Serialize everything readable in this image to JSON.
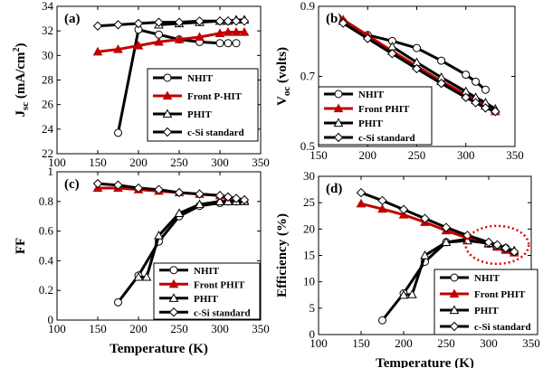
{
  "colors": {
    "black": "#000000",
    "red": "#c00000",
    "ellipse": "#e00000"
  },
  "shared": {
    "xlabel": "Temperature (K)"
  },
  "chart_data": [
    {
      "id": "a",
      "type": "line",
      "panel_label": "(a)",
      "ylabel_main": "J",
      "ylabel_sub": "sc",
      "ylabel_rest": " (mA/cm",
      "ylabel_sup": "2",
      "ylabel_end": ")",
      "xlim": [
        100,
        350
      ],
      "ylim": [
        22,
        34
      ],
      "xticks": [
        100,
        150,
        200,
        250,
        300,
        350
      ],
      "yticks": [
        22,
        24,
        26,
        28,
        30,
        32,
        34
      ],
      "xlabel": "",
      "legend": [
        "NHIT",
        "Front P-HIT",
        "PHIT",
        "c-Si standard"
      ],
      "series": [
        {
          "name": "NHIT",
          "marker": "circle",
          "color": "#000000",
          "x": [
            175,
            200,
            225,
            250,
            275,
            300,
            310,
            320
          ],
          "y": [
            23.7,
            32.1,
            31.7,
            31.3,
            31.1,
            31.0,
            31.0,
            31.0
          ]
        },
        {
          "name": "Front P-HIT",
          "marker": "triangle",
          "color": "#c00000",
          "x": [
            150,
            175,
            200,
            225,
            250,
            275,
            300,
            310,
            320,
            330
          ],
          "y": [
            30.3,
            30.5,
            30.8,
            31.1,
            31.3,
            31.5,
            31.8,
            31.9,
            31.9,
            31.9
          ]
        },
        {
          "name": "PHIT",
          "marker": "triangle",
          "color": "#000000",
          "x": [
            225,
            250,
            275,
            300,
            310,
            320,
            330
          ],
          "y": [
            32.5,
            32.6,
            32.7,
            32.8,
            32.8,
            32.9,
            32.9
          ]
        },
        {
          "name": "c-Si standard",
          "marker": "diamond",
          "color": "#000000",
          "x": [
            150,
            175,
            200,
            225,
            250,
            275,
            300,
            310,
            320,
            330
          ],
          "y": [
            32.4,
            32.5,
            32.6,
            32.7,
            32.7,
            32.8,
            32.8,
            32.8,
            32.8,
            32.8
          ]
        }
      ]
    },
    {
      "id": "b",
      "type": "line",
      "panel_label": "(b)",
      "ylabel_main": "V",
      "ylabel_sub": "oc",
      "ylabel_rest": " (volts)",
      "xlim": [
        150,
        350
      ],
      "ylim": [
        0.5,
        0.9
      ],
      "xticks": [
        150,
        200,
        250,
        300,
        350
      ],
      "yticks": [
        0.5,
        0.7,
        0.9
      ],
      "xlabel": "",
      "legend": [
        "NHIT",
        "Front PHIT",
        "PHIT",
        "c-Si standard"
      ],
      "series": [
        {
          "name": "NHIT",
          "marker": "circle",
          "color": "#000000",
          "x": [
            175,
            200,
            225,
            250,
            275,
            300,
            310,
            320
          ],
          "y": [
            0.856,
            0.818,
            0.801,
            0.781,
            0.745,
            0.705,
            0.685,
            0.662
          ]
        },
        {
          "name": "Front PHIT",
          "marker": "triangle",
          "color": "#c00000",
          "x": [
            175,
            200,
            225,
            250,
            275,
            300,
            310,
            320,
            330
          ],
          "y": [
            0.862,
            0.817,
            0.772,
            0.729,
            0.686,
            0.648,
            0.632,
            0.616,
            0.6
          ]
        },
        {
          "name": "PHIT",
          "marker": "triangle",
          "color": "#000000",
          "x": [
            225,
            250,
            275,
            300,
            310,
            320,
            330
          ],
          "y": [
            0.785,
            0.74,
            0.697,
            0.657,
            0.64,
            0.625,
            0.607
          ]
        },
        {
          "name": "c-Si standard",
          "marker": "diamond",
          "color": "#000000",
          "x": [
            175,
            200,
            225,
            250,
            275,
            300,
            310,
            320,
            330
          ],
          "y": [
            0.852,
            0.808,
            0.765,
            0.722,
            0.68,
            0.64,
            0.625,
            0.61,
            0.6
          ]
        }
      ]
    },
    {
      "id": "c",
      "type": "line",
      "panel_label": "(c)",
      "ylabel_main": "FF",
      "xlim": [
        100,
        350
      ],
      "ylim": [
        0,
        1
      ],
      "xticks": [
        100,
        150,
        200,
        250,
        300,
        350
      ],
      "yticks": [
        0,
        0.2,
        0.4,
        0.6,
        0.8,
        1
      ],
      "xlabel": "Temperature (K)",
      "legend": [
        "NHIT",
        "Front PHIT",
        "PHIT",
        "c-Si standard"
      ],
      "series": [
        {
          "name": "NHIT",
          "marker": "circle",
          "color": "#000000",
          "x": [
            175,
            200,
            225,
            250,
            275,
            300,
            310,
            320
          ],
          "y": [
            0.12,
            0.3,
            0.53,
            0.7,
            0.77,
            0.79,
            0.8,
            0.8
          ]
        },
        {
          "name": "Front PHIT",
          "marker": "triangle",
          "color": "#c00000",
          "x": [
            150,
            175,
            200,
            225,
            250,
            275,
            300,
            310,
            320,
            330
          ],
          "y": [
            0.89,
            0.89,
            0.88,
            0.87,
            0.86,
            0.85,
            0.84,
            0.83,
            0.82,
            0.81
          ]
        },
        {
          "name": "PHIT",
          "marker": "triangle",
          "color": "#000000",
          "x": [
            200,
            210,
            225,
            250,
            275,
            300,
            310,
            320,
            330
          ],
          "y": [
            0.29,
            0.29,
            0.57,
            0.72,
            0.78,
            0.8,
            0.8,
            0.8,
            0.8
          ]
        },
        {
          "name": "c-Si standard",
          "marker": "diamond",
          "color": "#000000",
          "x": [
            150,
            175,
            200,
            225,
            250,
            275,
            300,
            310,
            320,
            330
          ],
          "y": [
            0.92,
            0.91,
            0.89,
            0.88,
            0.86,
            0.85,
            0.84,
            0.83,
            0.82,
            0.81
          ]
        }
      ]
    },
    {
      "id": "d",
      "type": "line",
      "panel_label": "(d)",
      "ylabel_main": "Efficiency (%)",
      "xlim": [
        100,
        350
      ],
      "ylim": [
        0,
        30
      ],
      "xticks": [
        100,
        150,
        200,
        250,
        300,
        350
      ],
      "yticks": [
        0,
        5,
        10,
        15,
        20,
        25,
        30
      ],
      "xlabel": "Temperature (K)",
      "legend": [
        "NHIT",
        "Front PHIT",
        "PHIT",
        "c-Si standard"
      ],
      "series": [
        {
          "name": "NHIT",
          "marker": "circle",
          "color": "#000000",
          "x": [
            175,
            200,
            225,
            250,
            275,
            300,
            310,
            320
          ],
          "y": [
            2.7,
            7.8,
            13.8,
            17.5,
            18.1,
            17.2,
            16.7,
            16.4
          ]
        },
        {
          "name": "Front PHIT",
          "marker": "triangle",
          "color": "#c00000",
          "x": [
            150,
            175,
            200,
            225,
            250,
            275,
            300,
            310,
            320,
            330
          ],
          "y": [
            24.8,
            23.8,
            22.7,
            21.3,
            19.7,
            18.3,
            17.2,
            16.6,
            16.0,
            15.5
          ]
        },
        {
          "name": "PHIT",
          "marker": "triangle",
          "color": "#000000",
          "x": [
            200,
            210,
            225,
            250,
            275,
            300,
            310,
            320,
            330
          ],
          "y": [
            7.5,
            7.6,
            15.0,
            17.5,
            17.8,
            17.3,
            16.9,
            16.4,
            15.9
          ]
        },
        {
          "name": "c-Si standard",
          "marker": "diamond",
          "color": "#000000",
          "x": [
            150,
            175,
            200,
            225,
            250,
            275,
            300,
            310,
            320,
            330
          ],
          "y": [
            26.9,
            25.4,
            23.7,
            22.0,
            20.3,
            18.8,
            17.5,
            17.0,
            16.4,
            15.7
          ]
        }
      ],
      "annotation": {
        "shape": "dotted-ellipse",
        "center": [
          310,
          17.0
        ],
        "radius_x": 37,
        "radius_y": 3.6
      }
    }
  ]
}
